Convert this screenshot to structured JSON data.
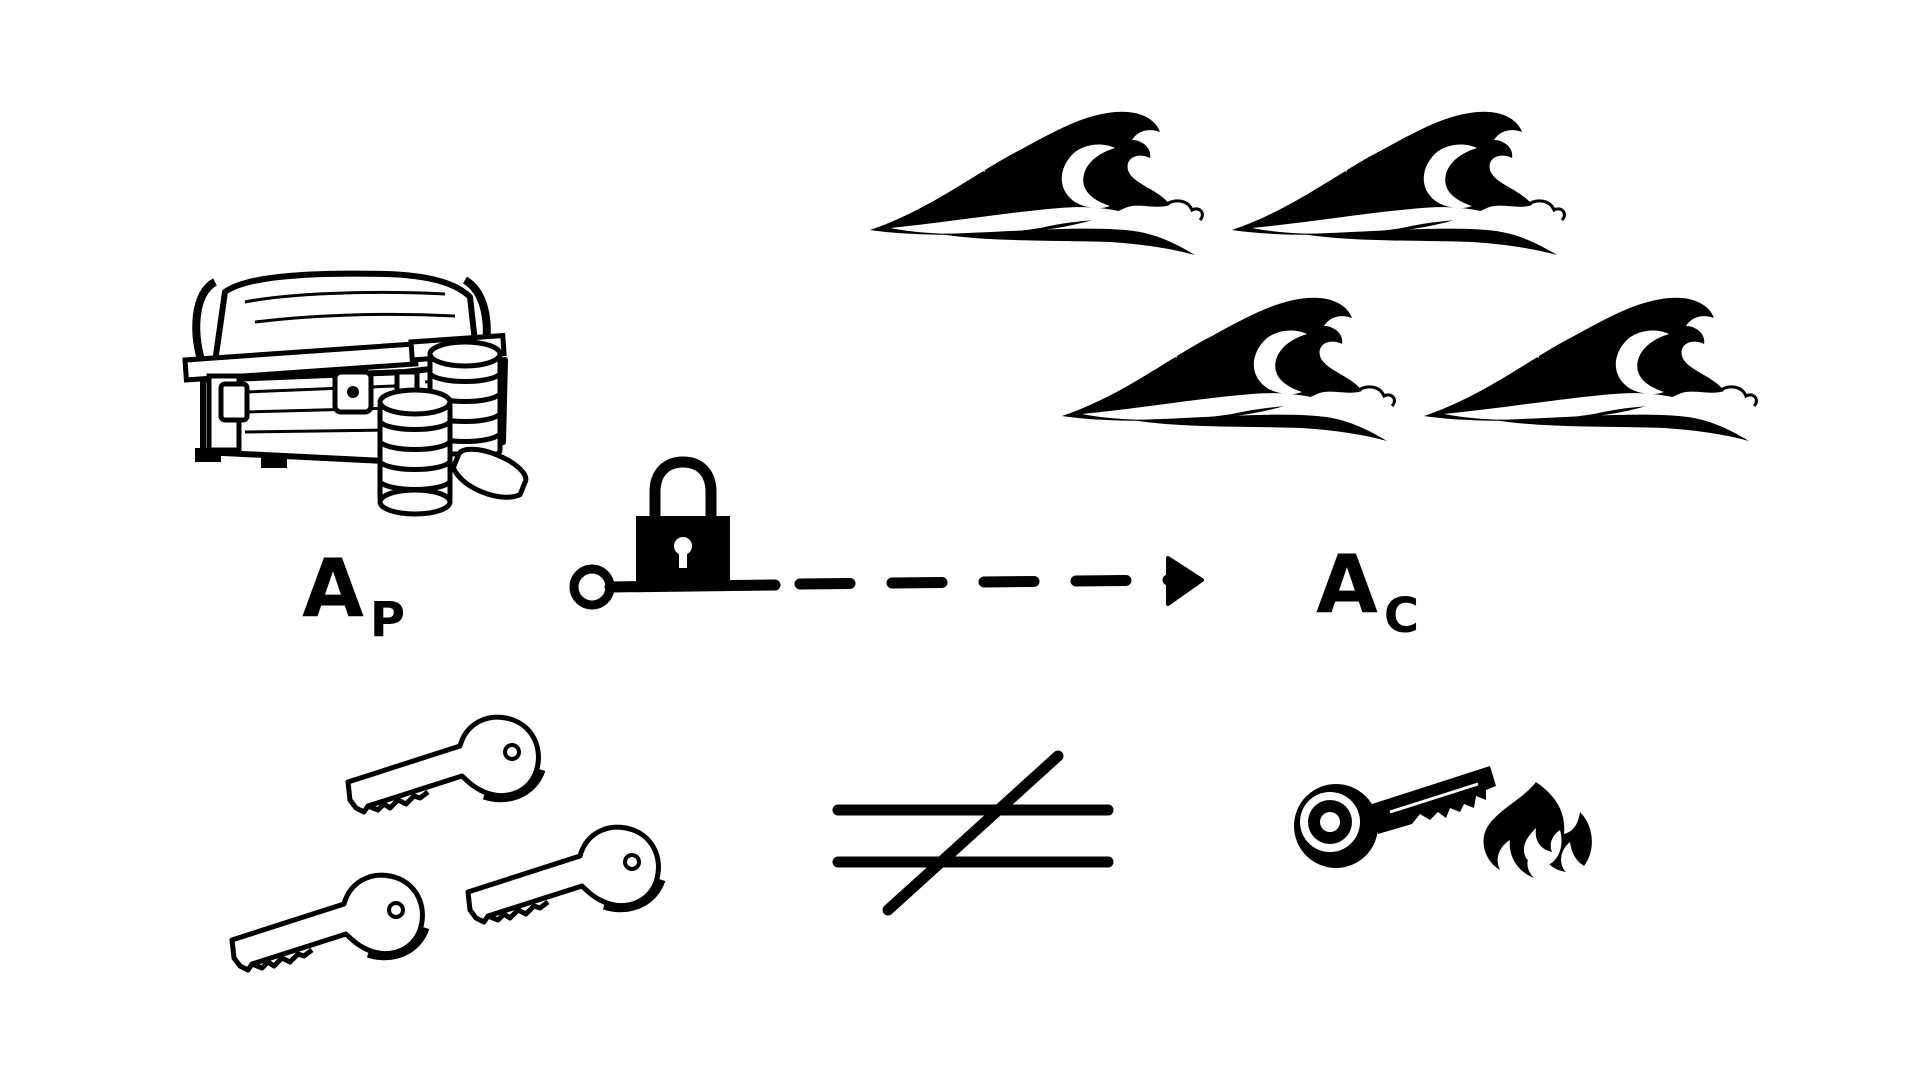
{
  "labels": {
    "source_main": "A",
    "source_sub": "P",
    "target_main": "A",
    "target_sub": "C"
  },
  "icons": {
    "treasure": "treasure-chest-icon",
    "coins": "coin-stack-icon",
    "lock": "padlock-icon",
    "waves": "ocean-wave-icon",
    "keys": "key-icon",
    "not_equal": "not-equal-icon",
    "burning_key": "burning-key-icon"
  },
  "colors": {
    "ink": "#000000",
    "paper": "#ffffff"
  }
}
